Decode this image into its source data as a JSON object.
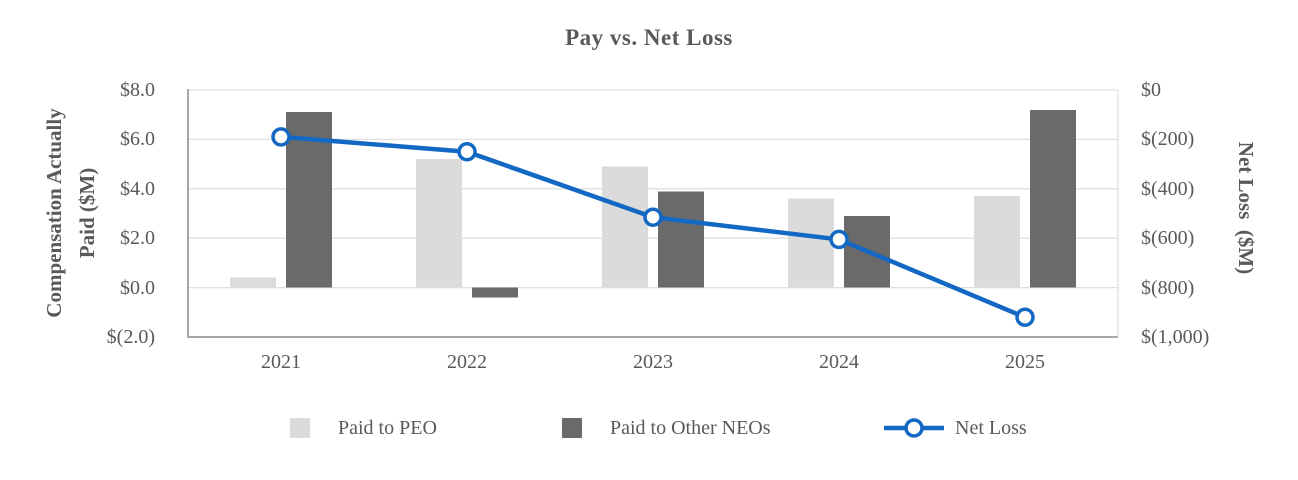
{
  "chart_data": {
    "type": "combo",
    "title": "Pay vs. Net Loss",
    "categories": [
      "2021",
      "2022",
      "2023",
      "2024",
      "2025"
    ],
    "bar_series": [
      {
        "name": "Paid to PEO",
        "color": "#dbdbdb",
        "values": [
          0.4,
          5.2,
          4.9,
          3.6,
          3.7
        ]
      },
      {
        "name": "Paid to Other NEOs",
        "color": "#6a6a6a",
        "values": [
          7.1,
          -0.4,
          3.9,
          2.9,
          7.2
        ]
      }
    ],
    "line_series": [
      {
        "name": "Net Loss",
        "color": "#1268c3",
        "marker": "open-circle",
        "axis": "right",
        "values": [
          -190,
          -250,
          -515,
          -605,
          -920
        ]
      }
    ],
    "left_axis": {
      "title": "Compensation Actually Paid ($M)",
      "min": -2,
      "max": 8,
      "tick_labels": [
        "$8.0",
        "$6.0",
        "$4.0",
        "$2.0",
        "$0.0",
        "$(2.0)"
      ]
    },
    "right_axis": {
      "title": "Net Loss  ($M)",
      "min": -1000,
      "max": 0,
      "tick_labels": [
        "$0",
        "$(200)",
        "$(400)",
        "$(600)",
        "$(800)",
        "$(1,000)"
      ]
    },
    "legend": [
      {
        "label": "Paid to PEO",
        "swatch": "square",
        "color": "#dbdbdb"
      },
      {
        "label": "Paid to Other NEOs",
        "swatch": "square",
        "color": "#6a6a6a"
      },
      {
        "label": "Net Loss",
        "swatch": "line-marker",
        "color": "#1268c3"
      }
    ],
    "gridlines": "horizontal",
    "legend_position": "bottom"
  },
  "colors": {
    "text": "#595959",
    "gridline": "#e0e0e0",
    "axis_line": "#a6a6a6",
    "background": "#ffffff"
  }
}
